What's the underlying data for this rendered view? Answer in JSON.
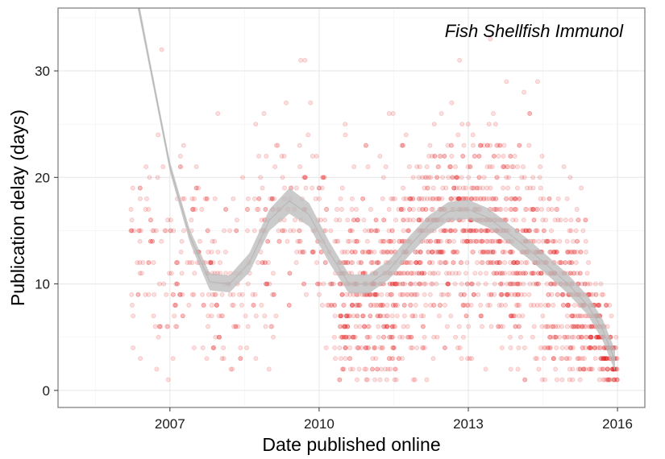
{
  "chart_data": {
    "type": "scatter",
    "annotation": "Fish Shellfish Immunol",
    "xlabel": "Date published online",
    "ylabel": "Publication delay (days)",
    "xlim": [
      2004.75,
      2016.55
    ],
    "ylim": [
      -1.6,
      35.9
    ],
    "x_ticks": [
      {
        "value": 2007,
        "label": "2007"
      },
      {
        "value": 2010,
        "label": "2010"
      },
      {
        "value": 2013,
        "label": "2013"
      },
      {
        "value": 2016,
        "label": "2016"
      }
    ],
    "y_ticks": [
      {
        "value": 0,
        "label": "0"
      },
      {
        "value": 10,
        "label": "10"
      },
      {
        "value": 20,
        "label": "20"
      },
      {
        "value": 30,
        "label": "30"
      }
    ],
    "grid": true,
    "point_color": "#e41a1c",
    "band_color": "#bdbdbd",
    "smooth_fit": {
      "x": [
        2006.35,
        2006.6,
        2007.0,
        2007.4,
        2007.8,
        2008.2,
        2008.6,
        2009.0,
        2009.4,
        2009.8,
        2010.2,
        2010.6,
        2011.0,
        2011.4,
        2011.8,
        2012.2,
        2012.6,
        2013.0,
        2013.4,
        2013.8,
        2014.2,
        2014.6,
        2015.0,
        2015.4,
        2015.7,
        2015.95
      ],
      "y": [
        36.5,
        30.5,
        21.0,
        14.5,
        10.2,
        10.0,
        12.0,
        16.0,
        17.8,
        16.5,
        13.0,
        10.0,
        10.0,
        11.3,
        13.5,
        15.5,
        16.8,
        17.0,
        16.2,
        14.8,
        13.3,
        11.7,
        10.0,
        8.0,
        5.7,
        2.8
      ],
      "band_halfwidth": [
        0.6,
        0.5,
        0.5,
        0.6,
        0.8,
        0.8,
        0.9,
        1.0,
        1.2,
        1.1,
        1.0,
        0.9,
        0.9,
        0.9,
        0.9,
        0.9,
        0.9,
        0.9,
        0.9,
        0.9,
        0.9,
        0.9,
        0.9,
        0.9,
        1.0,
        1.0
      ]
    }
  }
}
